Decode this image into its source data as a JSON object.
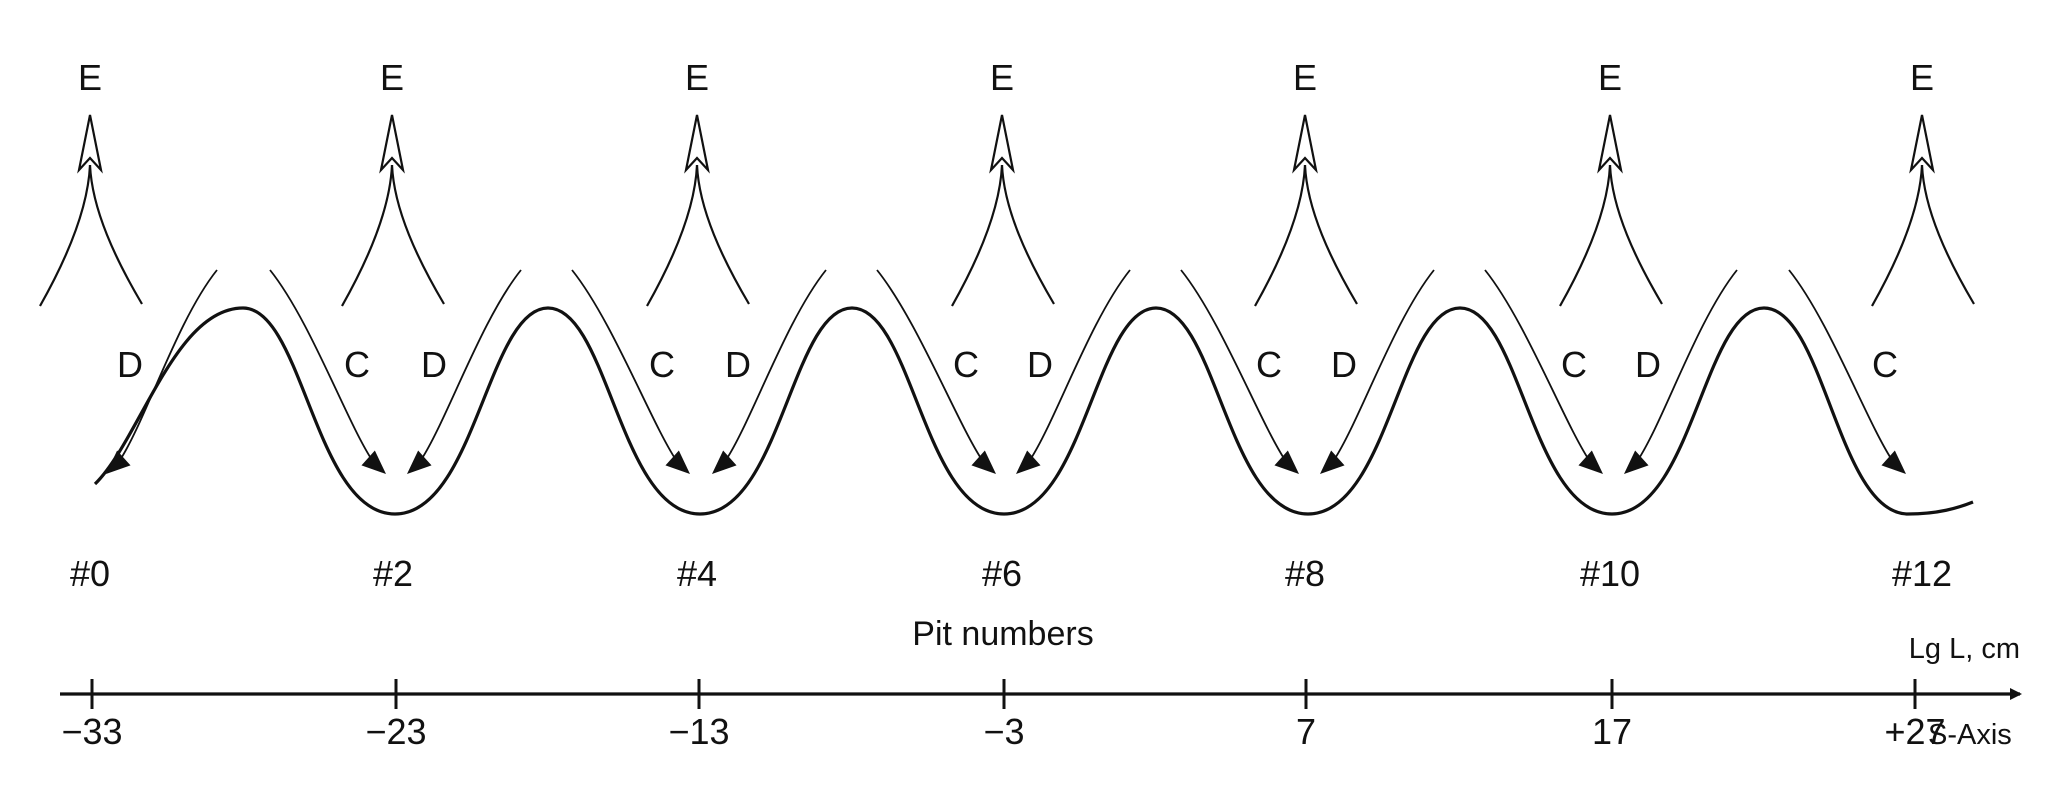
{
  "diagram": {
    "pit_labels": [
      "#0",
      "#2",
      "#4",
      "#6",
      "#8",
      "#10",
      "#12"
    ],
    "pit_axis_title": "Pit numbers",
    "s_axis_ticks": [
      "−33",
      "−23",
      "−13",
      "−3",
      "7",
      "17",
      "+27"
    ],
    "s_axis_name": "S-Axis",
    "lg_axis_name": "Lg L, cm",
    "emission_label": "E",
    "convergent_label": "C",
    "divergent_label": "D",
    "colors": {
      "line": "#111111",
      "background": "#ffffff"
    }
  }
}
